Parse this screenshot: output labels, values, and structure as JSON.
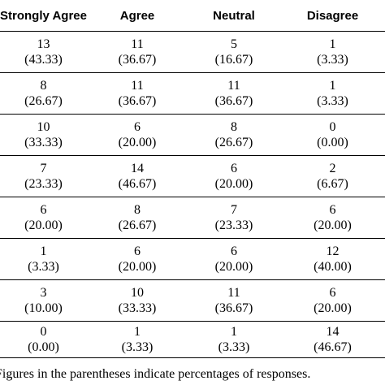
{
  "table": {
    "headers": [
      "Strongly Agree",
      "Agree",
      "Neutral",
      "Disagree"
    ],
    "rows": [
      [
        {
          "count": "13",
          "pct": "(43.33)"
        },
        {
          "count": "11",
          "pct": "(36.67)"
        },
        {
          "count": "5",
          "pct": "(16.67)"
        },
        {
          "count": "1",
          "pct": "(3.33)"
        }
      ],
      [
        {
          "count": "8",
          "pct": "(26.67)"
        },
        {
          "count": "11",
          "pct": "(36.67)"
        },
        {
          "count": "11",
          "pct": "(36.67)"
        },
        {
          "count": "1",
          "pct": "(3.33)"
        }
      ],
      [
        {
          "count": "10",
          "pct": "(33.33)"
        },
        {
          "count": "6",
          "pct": "(20.00)"
        },
        {
          "count": "8",
          "pct": "(26.67)"
        },
        {
          "count": "0",
          "pct": "(0.00)"
        }
      ],
      [
        {
          "count": "7",
          "pct": "(23.33)"
        },
        {
          "count": "14",
          "pct": "(46.67)"
        },
        {
          "count": "6",
          "pct": "(20.00)"
        },
        {
          "count": "2",
          "pct": "(6.67)"
        }
      ],
      [
        {
          "count": "6",
          "pct": "(20.00)"
        },
        {
          "count": "8",
          "pct": "(26.67)"
        },
        {
          "count": "7",
          "pct": "(23.33)"
        },
        {
          "count": "6",
          "pct": "(20.00)"
        }
      ],
      [
        {
          "count": "1",
          "pct": "(3.33)"
        },
        {
          "count": "6",
          "pct": "(20.00)"
        },
        {
          "count": "6",
          "pct": "(20.00)"
        },
        {
          "count": "12",
          "pct": "(40.00)"
        }
      ],
      [
        {
          "count": "3",
          "pct": "(10.00)"
        },
        {
          "count": "10",
          "pct": "(33.33)"
        },
        {
          "count": "11",
          "pct": "(36.67)"
        },
        {
          "count": "6",
          "pct": "(20.00)"
        }
      ],
      [
        {
          "count": "0",
          "pct": "(0.00)"
        },
        {
          "count": "1",
          "pct": "(3.33)"
        },
        {
          "count": "1",
          "pct": "(3.33)"
        },
        {
          "count": "14",
          "pct": "(46.67)"
        }
      ]
    ]
  },
  "footnote": "Figures in the parentheses indicate percentages of responses."
}
